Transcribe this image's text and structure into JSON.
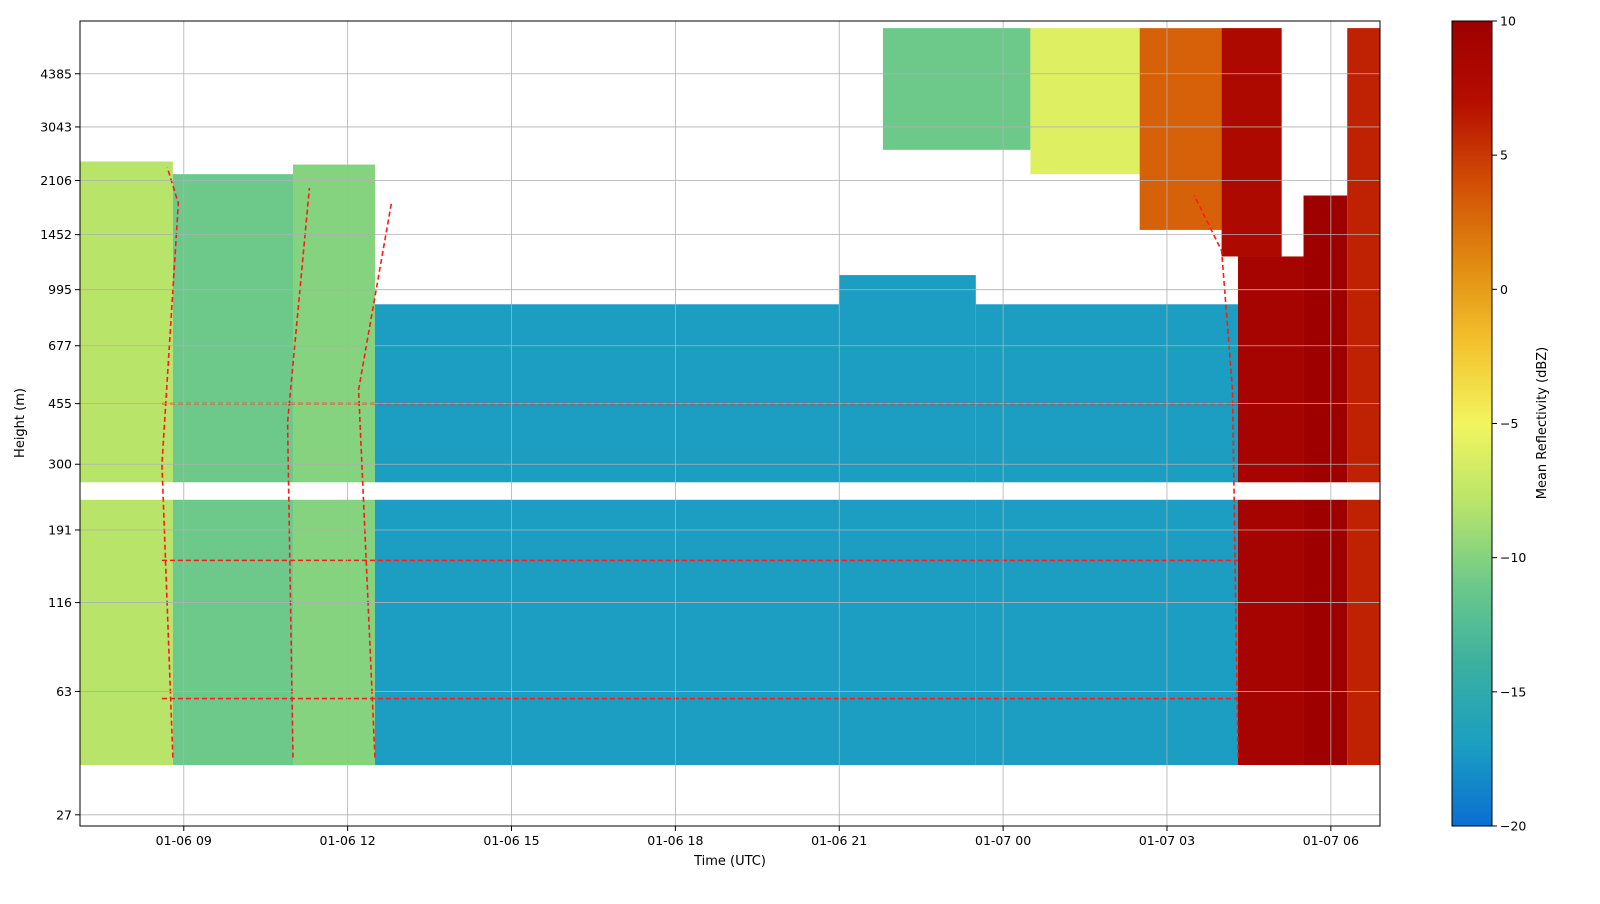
{
  "chart_data": {
    "type": "heatmap",
    "title": "",
    "xlabel": "Time (UTC)",
    "ylabel": "Height (m)",
    "x_ticks": [
      "01-06 09",
      "01-06 12",
      "01-06 15",
      "01-06 18",
      "01-06 21",
      "01-07 00",
      "01-07 03",
      "01-07 06"
    ],
    "x_range_hours": [
      7.1,
      30.9
    ],
    "y_ticks": [
      27,
      63,
      116,
      191,
      300,
      455,
      677,
      995,
      1452,
      2106,
      3043,
      4385
    ],
    "y_scale": "log",
    "y_range": [
      25,
      6300
    ],
    "grid": true,
    "colorbar": {
      "label": "Mean Reflectivity (dBZ)",
      "min": -20,
      "max": 10,
      "ticks": [
        -20,
        -15,
        -10,
        -5,
        0,
        5,
        10
      ],
      "colors": [
        "#0a6fd1",
        "#1b9ec2",
        "#3bb0a0",
        "#6cc98a",
        "#b8e46a",
        "#f2f55e",
        "#f3c22d",
        "#e08a10",
        "#d24d05",
        "#b50d00",
        "#9e0000"
      ]
    },
    "contour": {
      "color": "#ff1a1a",
      "style": "dashed"
    },
    "regions": [
      {
        "t0": 7.1,
        "t1": 8.8,
        "h0": 38,
        "h1": 2400,
        "dbz": -8
      },
      {
        "t0": 8.8,
        "t1": 11.0,
        "h0": 38,
        "h1": 2200,
        "dbz": -11
      },
      {
        "t0": 11.0,
        "t1": 12.5,
        "h0": 38,
        "h1": 2350,
        "dbz": -10
      },
      {
        "t0": 12.5,
        "t1": 21.0,
        "h0": 38,
        "h1": 900,
        "dbz": -17
      },
      {
        "t0": 21.0,
        "t1": 23.5,
        "h0": 38,
        "h1": 1100,
        "dbz": -17
      },
      {
        "t0": 23.5,
        "t1": 28.3,
        "h0": 38,
        "h1": 900,
        "dbz": -17
      },
      {
        "t0": 21.8,
        "t1": 24.5,
        "h0": 2600,
        "h1": 6000,
        "dbz": -11
      },
      {
        "t0": 24.5,
        "t1": 26.5,
        "h0": 2200,
        "h1": 6000,
        "dbz": -6
      },
      {
        "t0": 26.5,
        "t1": 28.0,
        "h0": 1500,
        "h1": 6000,
        "dbz": 3
      },
      {
        "t0": 28.0,
        "t1": 29.1,
        "h0": 1250,
        "h1": 6000,
        "dbz": 8
      },
      {
        "t0": 28.3,
        "t1": 29.5,
        "h0": 38,
        "h1": 1250,
        "dbz": 9
      },
      {
        "t0": 29.5,
        "t1": 30.3,
        "h0": 38,
        "h1": 1900,
        "dbz": 10
      },
      {
        "t0": 30.3,
        "t1": 30.9,
        "h0": 38,
        "h1": 6000,
        "dbz": 6
      }
    ]
  }
}
